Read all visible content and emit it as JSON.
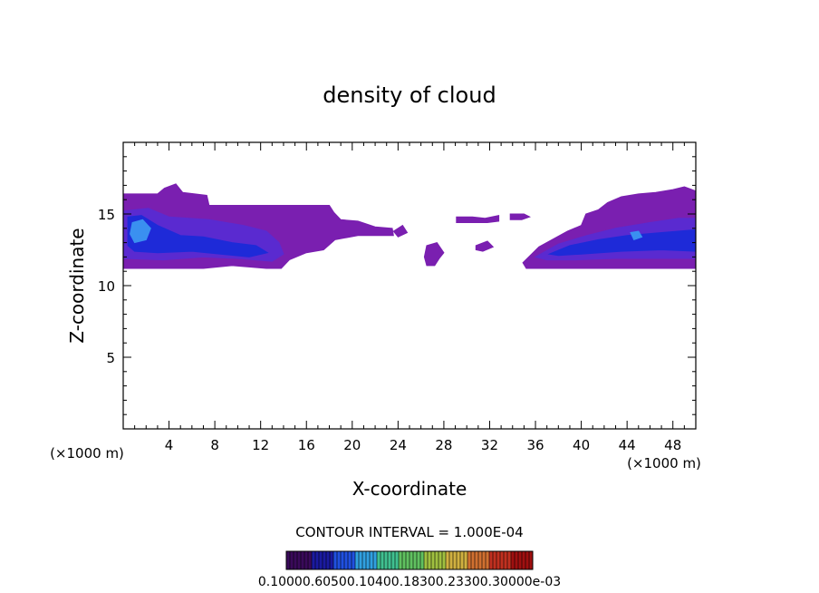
{
  "chart_data": {
    "type": "heatmap",
    "title": "density of cloud",
    "xlabel": "X-coordinate",
    "ylabel": "Z-coordinate",
    "x_unit_left": "(×1000 m)",
    "x_unit_right": "(×1000 m)",
    "xlim": [
      0,
      50
    ],
    "ylim": [
      0,
      20
    ],
    "xticks": [
      4,
      8,
      12,
      16,
      20,
      24,
      28,
      32,
      36,
      40,
      44,
      48
    ],
    "yticks": [
      5,
      10,
      15
    ],
    "contour_interval": "CONTOUR INTERVAL = 1.000E-04",
    "colorbar_labels": "0.10000.60500.10400.18300.23300.30000e-03",
    "colorbar_colors": [
      "#3a0a5a",
      "#1a1aa0",
      "#2050e0",
      "#30a0e0",
      "#40c090",
      "#60c060",
      "#a0c040",
      "#d0b040",
      "#d07030",
      "#c03020",
      "#a01010"
    ],
    "regions": [
      {
        "name": "left-cloud-outer",
        "color": "#7a1fb0",
        "points": [
          [
            0,
            16.4
          ],
          [
            3,
            16.4
          ],
          [
            3.6,
            16.8
          ],
          [
            4.6,
            17.1
          ],
          [
            5.2,
            16.5
          ],
          [
            7.3,
            16.3
          ],
          [
            7.5,
            15.6
          ],
          [
            18,
            15.6
          ],
          [
            18.4,
            15.1
          ],
          [
            19,
            14.6
          ],
          [
            20.5,
            14.5
          ],
          [
            22,
            14.1
          ],
          [
            23.5,
            14.0
          ],
          [
            23.6,
            13.5
          ],
          [
            20.5,
            13.5
          ],
          [
            18.5,
            13.2
          ],
          [
            17.5,
            12.5
          ],
          [
            16.0,
            12.3
          ],
          [
            14.5,
            11.8
          ],
          [
            13.8,
            11.2
          ],
          [
            12.5,
            11.2
          ],
          [
            9.5,
            11.4
          ],
          [
            7.0,
            11.2
          ],
          [
            4.0,
            11.2
          ],
          [
            0,
            11.2
          ]
        ]
      },
      {
        "name": "left-cloud-mid",
        "color": "#5a2ad0",
        "points": [
          [
            0,
            15.2
          ],
          [
            2.2,
            15.4
          ],
          [
            4,
            14.8
          ],
          [
            7.5,
            14.6
          ],
          [
            10.5,
            14.2
          ],
          [
            12.5,
            13.8
          ],
          [
            13.6,
            13.0
          ],
          [
            14.0,
            12.2
          ],
          [
            13.0,
            11.7
          ],
          [
            10.0,
            11.9
          ],
          [
            7.0,
            12.0
          ],
          [
            3.5,
            11.8
          ],
          [
            0,
            11.9
          ]
        ]
      },
      {
        "name": "left-cloud-core",
        "color": "#1e2ad8",
        "points": [
          [
            0.4,
            14.8
          ],
          [
            1.6,
            14.9
          ],
          [
            3,
            14.2
          ],
          [
            5,
            13.5
          ],
          [
            7,
            13.4
          ],
          [
            9.5,
            13.0
          ],
          [
            11.6,
            12.8
          ],
          [
            12.6,
            12.3
          ],
          [
            11.0,
            12.0
          ],
          [
            8.5,
            12.2
          ],
          [
            6.0,
            12.4
          ],
          [
            3.0,
            12.3
          ],
          [
            1.0,
            12.4
          ],
          [
            0.4,
            12.8
          ]
        ]
      },
      {
        "name": "left-cloud-peak",
        "color": "#3a90f0",
        "points": [
          [
            0.8,
            14.4
          ],
          [
            1.7,
            14.6
          ],
          [
            2.4,
            14.0
          ],
          [
            2.0,
            13.2
          ],
          [
            1.0,
            13.0
          ],
          [
            0.6,
            13.6
          ]
        ]
      },
      {
        "name": "mid-fragment-a",
        "color": "#7a1fb0",
        "points": [
          [
            26.5,
            12.8
          ],
          [
            27.4,
            13.0
          ],
          [
            28.0,
            12.3
          ],
          [
            27.6,
            11.9
          ],
          [
            27.2,
            11.4
          ],
          [
            26.5,
            11.4
          ],
          [
            26.3,
            12.0
          ]
        ]
      },
      {
        "name": "mid-fragment-b",
        "color": "#7a1fb0",
        "points": [
          [
            29.1,
            14.8
          ],
          [
            30.5,
            14.8
          ],
          [
            31.6,
            14.7
          ],
          [
            32.8,
            14.9
          ],
          [
            32.8,
            14.5
          ],
          [
            31.8,
            14.4
          ],
          [
            30.3,
            14.4
          ],
          [
            29.1,
            14.4
          ]
        ]
      },
      {
        "name": "mid-fragment-c",
        "color": "#7a1fb0",
        "points": [
          [
            30.8,
            12.8
          ],
          [
            31.8,
            13.1
          ],
          [
            32.3,
            12.7
          ],
          [
            31.4,
            12.4
          ],
          [
            30.8,
            12.5
          ]
        ]
      },
      {
        "name": "mid-fragment-d",
        "color": "#7a1fb0",
        "points": [
          [
            33.8,
            15.0
          ],
          [
            35.0,
            15.0
          ],
          [
            35.5,
            14.8
          ],
          [
            34.8,
            14.6
          ],
          [
            33.8,
            14.6
          ]
        ]
      },
      {
        "name": "mid-fragment-e",
        "color": "#7a1fb0",
        "points": [
          [
            23.6,
            13.8
          ],
          [
            24.4,
            14.2
          ],
          [
            24.8,
            13.7
          ],
          [
            24.0,
            13.4
          ]
        ]
      },
      {
        "name": "right-cloud-outer",
        "color": "#7a1fb0",
        "points": [
          [
            34.9,
            11.6
          ],
          [
            36.3,
            12.7
          ],
          [
            38.8,
            13.8
          ],
          [
            40.0,
            14.2
          ],
          [
            40.4,
            15.0
          ],
          [
            41.5,
            15.3
          ],
          [
            42.3,
            15.8
          ],
          [
            43.5,
            16.2
          ],
          [
            45.0,
            16.4
          ],
          [
            46.5,
            16.5
          ],
          [
            48.0,
            16.7
          ],
          [
            49.0,
            16.9
          ],
          [
            50,
            16.6
          ],
          [
            50,
            11.2
          ],
          [
            45.0,
            11.2
          ],
          [
            40.0,
            11.2
          ],
          [
            37.0,
            11.2
          ],
          [
            35.2,
            11.2
          ]
        ]
      },
      {
        "name": "right-cloud-mid",
        "color": "#5a2ad0",
        "points": [
          [
            36.0,
            12.0
          ],
          [
            38.0,
            12.9
          ],
          [
            40.5,
            13.5
          ],
          [
            43.0,
            14.0
          ],
          [
            46.0,
            14.4
          ],
          [
            48.5,
            14.7
          ],
          [
            50,
            14.7
          ],
          [
            50,
            11.9
          ],
          [
            47.0,
            11.9
          ],
          [
            43.0,
            11.9
          ],
          [
            39.5,
            11.8
          ],
          [
            37.0,
            11.8
          ]
        ]
      },
      {
        "name": "right-cloud-core",
        "color": "#1e2ad8",
        "points": [
          [
            37.2,
            12.2
          ],
          [
            39.0,
            12.8
          ],
          [
            41.5,
            13.2
          ],
          [
            44.0,
            13.5
          ],
          [
            47.0,
            13.7
          ],
          [
            50,
            13.9
          ],
          [
            50,
            12.4
          ],
          [
            47.0,
            12.5
          ],
          [
            43.5,
            12.4
          ],
          [
            40.0,
            12.2
          ],
          [
            38.0,
            12.1
          ]
        ]
      },
      {
        "name": "right-cloud-peak",
        "color": "#3a90f0",
        "points": [
          [
            44.3,
            13.7
          ],
          [
            45.0,
            13.8
          ],
          [
            45.3,
            13.4
          ],
          [
            44.6,
            13.2
          ]
        ]
      }
    ]
  }
}
